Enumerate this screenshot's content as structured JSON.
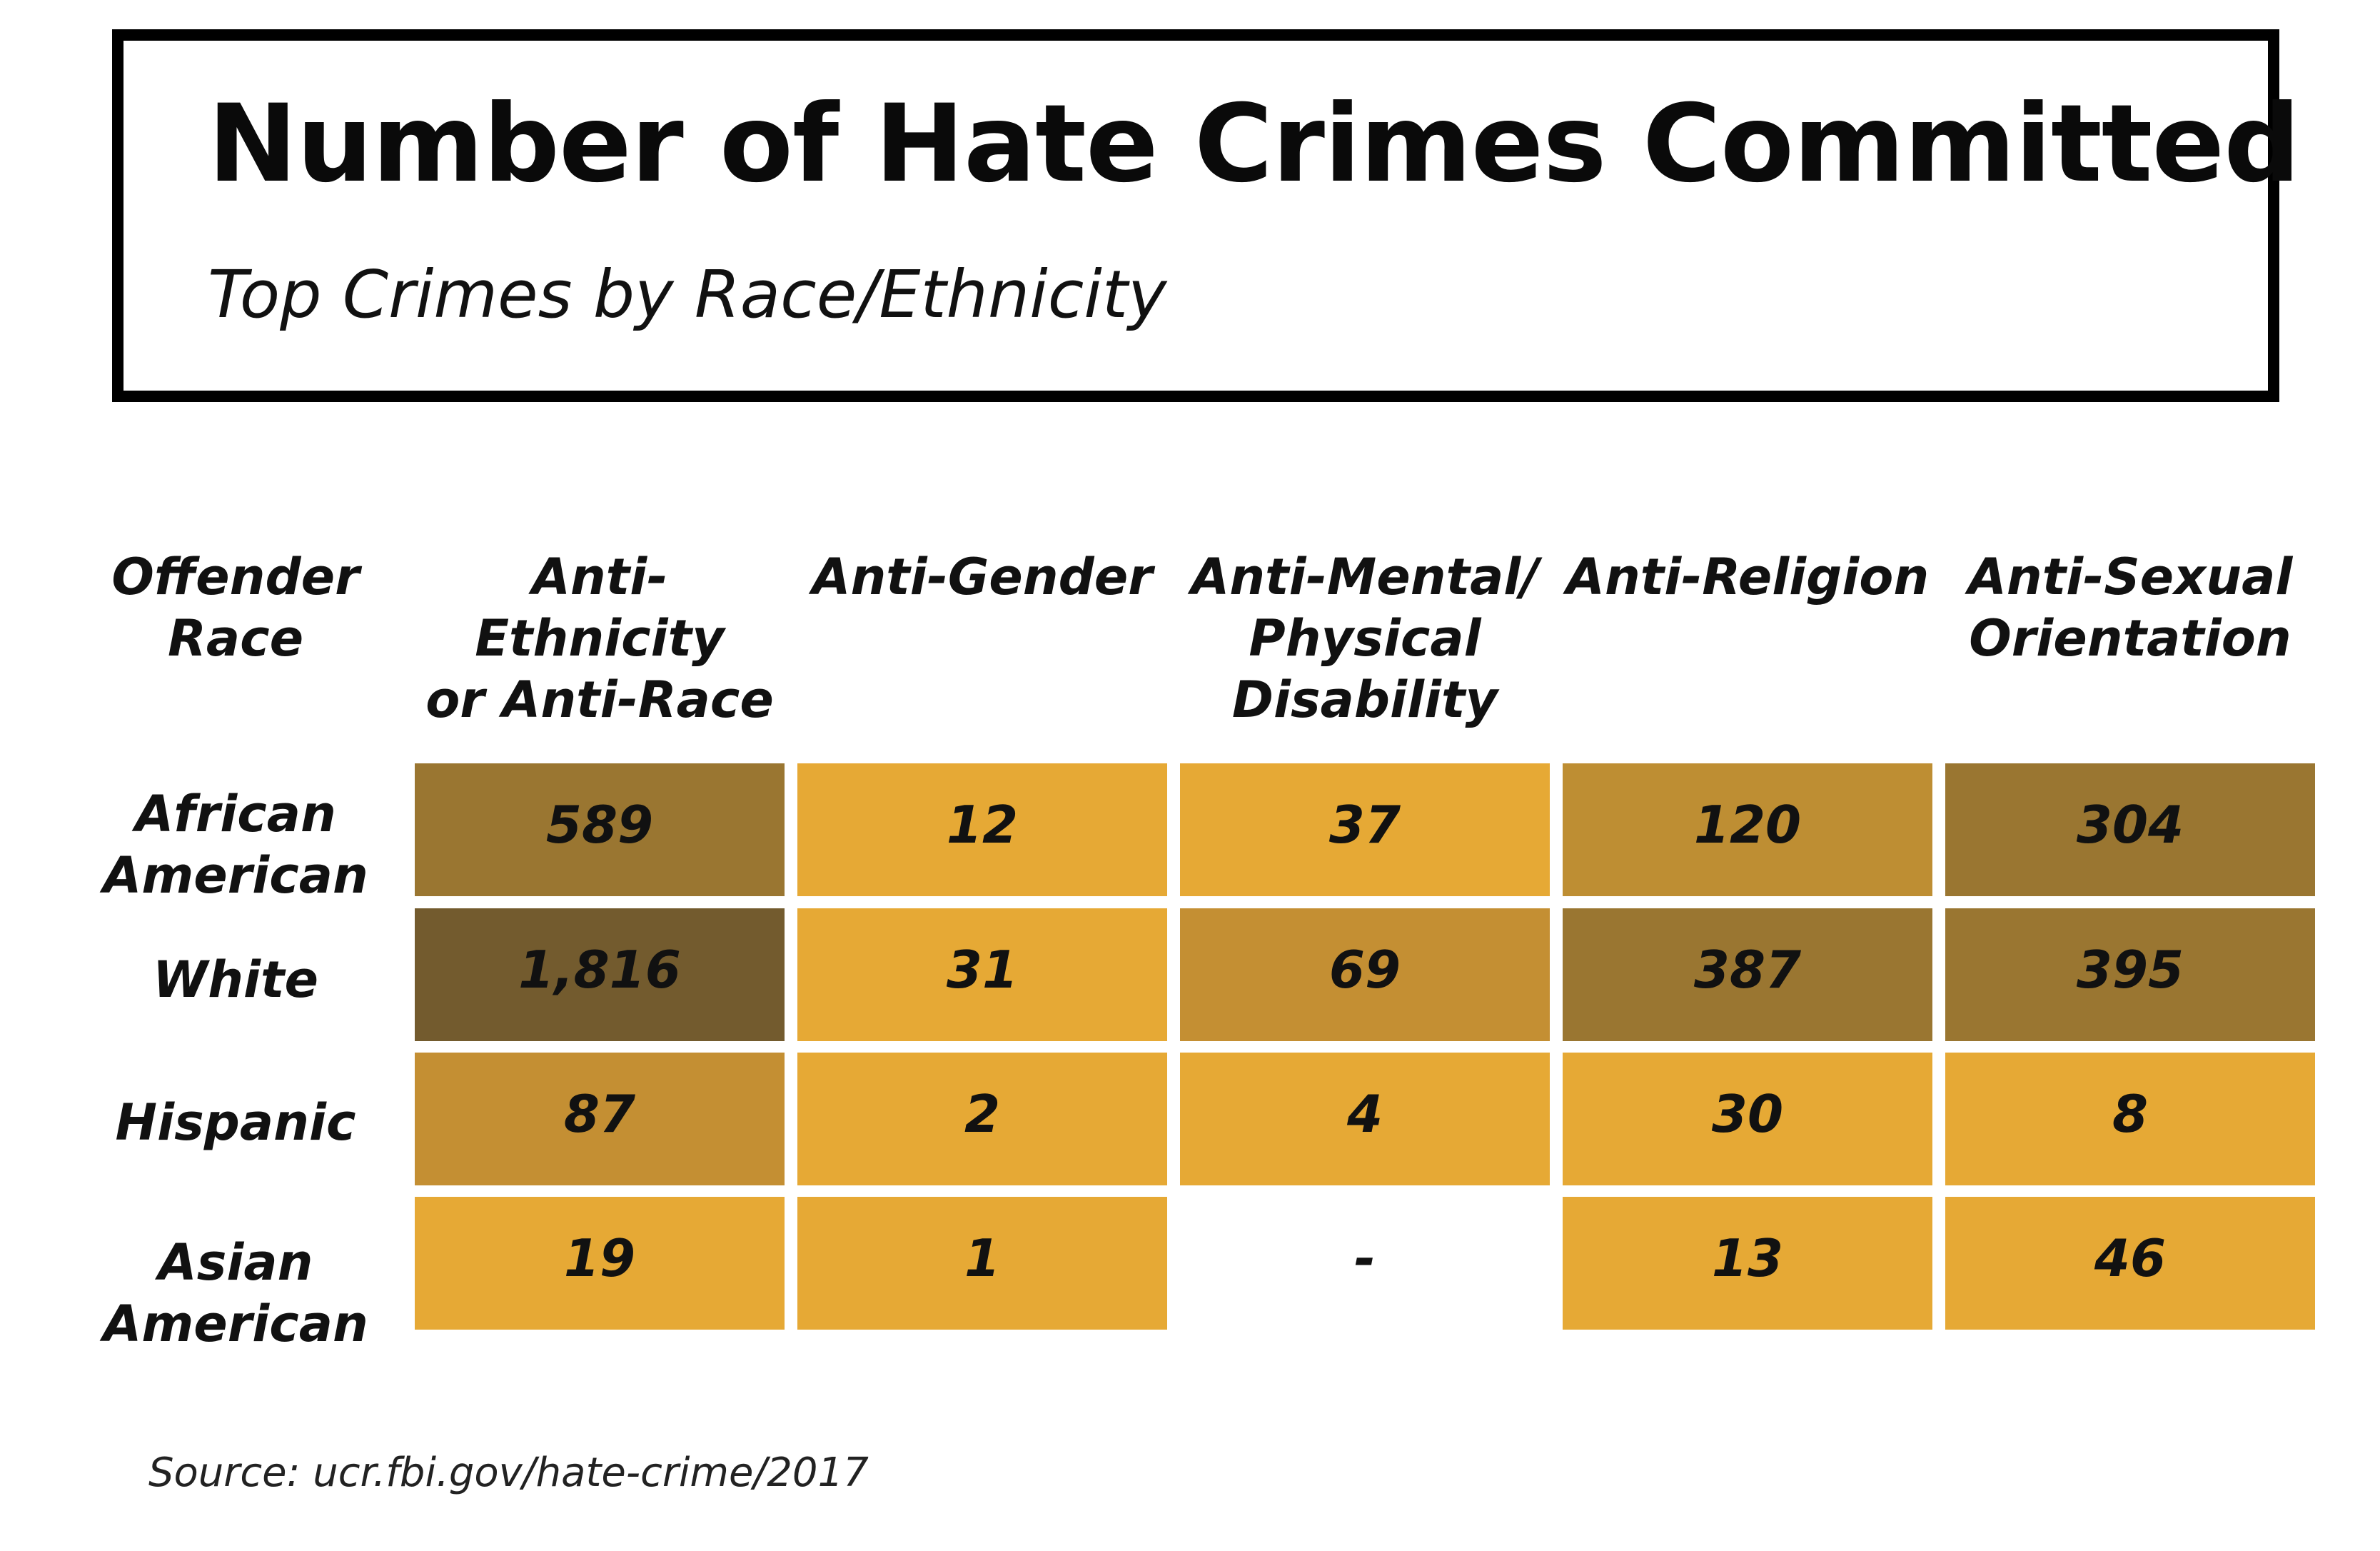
{
  "chart_data": {
    "type": "table",
    "title": "Number of Hate Crimes Committed",
    "subtitle": "Top Crimes by Race/Ethnicity",
    "row_header": "Offender\nRace",
    "columns": [
      "Anti-Ethnicity\nor Anti-Race",
      "Anti-Gender",
      "Anti-Mental/\nPhysical\nDisability",
      "Anti-Religion",
      "Anti-Sexual\nOrientation"
    ],
    "rows": [
      "African\nAmerican",
      "White",
      "Hispanic",
      "Asian\nAmerican"
    ],
    "values": [
      [
        589,
        12,
        37,
        120,
        304
      ],
      [
        1816,
        31,
        69,
        387,
        395
      ],
      [
        87,
        2,
        4,
        30,
        8
      ],
      [
        19,
        1,
        null,
        13,
        46
      ]
    ],
    "display": [
      [
        "589",
        "12",
        "37",
        "120",
        "304"
      ],
      [
        "1,816",
        "31",
        "69",
        "387",
        "395"
      ],
      [
        "87",
        "2",
        "4",
        "30",
        "8"
      ],
      [
        "19",
        "1",
        "-",
        "13",
        "46"
      ]
    ],
    "color_scale": {
      "thresholds": [
        50,
        100,
        300,
        1000
      ],
      "colors": [
        "#E6A935",
        "#C48F33",
        "#BE8E33",
        "#9A7631",
        "#735B2E"
      ]
    },
    "source": "Source: ucr.fbi.gov/hate-crime/2017"
  }
}
